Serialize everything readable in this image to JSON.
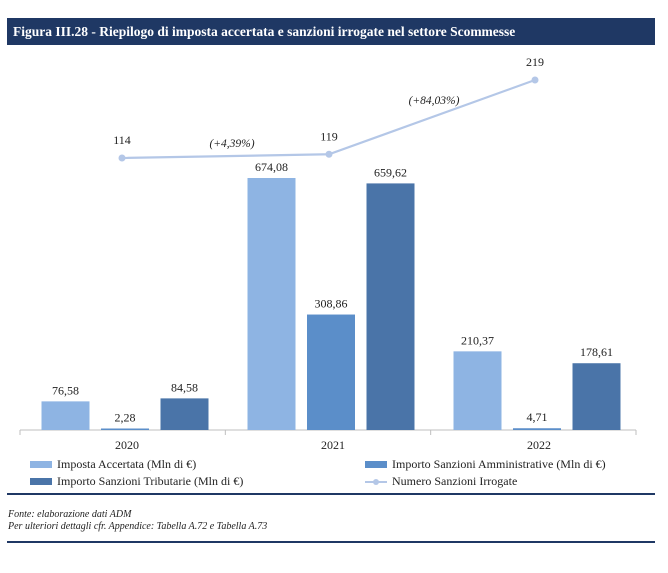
{
  "figure": {
    "title": "Figura III.28 - Riepilogo di imposta accertata e sanzioni irrogate nel settore Scommesse",
    "source_line1": "Fonte: elaborazione dati ADM",
    "source_line2": "Per ulteriori dettagli cfr. Appendice: Tabella A.72 e Tabella A.73"
  },
  "chart_data": {
    "type": "bar",
    "title": "Figura III.28 - Riepilogo di imposta accertata e sanzioni irrogate nel settore Scommesse",
    "categories": [
      "2020",
      "2021",
      "2022"
    ],
    "series": [
      {
        "name": "Imposta Accertata (Mln di €)",
        "type": "bar",
        "color": "#8eb4e3",
        "values": [
          76.58,
          674.08,
          210.37
        ],
        "labels": [
          "76,58",
          "674,08",
          "210,37"
        ]
      },
      {
        "name": "Importo Sanzioni Amministrative (Mln di €)",
        "type": "bar",
        "color": "#5b8ec9",
        "values": [
          2.28,
          308.86,
          4.71
        ],
        "labels": [
          "2,28",
          "308,86",
          "4,71"
        ]
      },
      {
        "name": "Importo Sanzioni Tributarie (Mln di €)",
        "type": "bar",
        "color": "#4a74a8",
        "values": [
          84.58,
          659.62,
          178.61
        ],
        "labels": [
          "84,58",
          "659,62",
          "178,61"
        ]
      },
      {
        "name": "Numero Sanzioni Irrogate",
        "type": "line",
        "color": "#b4c7e7",
        "values": [
          114,
          119,
          219
        ],
        "labels": [
          "114",
          "119",
          "219"
        ]
      }
    ],
    "annotations": [
      "(+4,39%)",
      "(+84,03%)"
    ],
    "grid": false,
    "legend_position": "bottom"
  }
}
